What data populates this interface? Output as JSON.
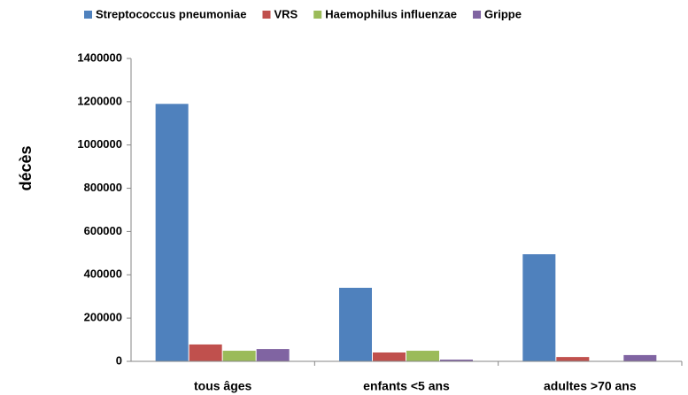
{
  "chart_data": {
    "type": "bar",
    "categories": [
      "tous âges",
      "enfants <5 ans",
      "adultes >70 ans"
    ],
    "series": [
      {
        "name": "Streptococcus pneumoniae",
        "color": "#4f81bd",
        "values": [
          1190000,
          340000,
          495000
        ]
      },
      {
        "name": "VRS",
        "color": "#c0504d",
        "values": [
          78000,
          41000,
          20000
        ]
      },
      {
        "name": "Haemophilus influenzae",
        "color": "#9bbb59",
        "values": [
          49000,
          49000,
          0
        ]
      },
      {
        "name": "Grippe",
        "color": "#8064a2",
        "values": [
          57000,
          8000,
          29000
        ]
      }
    ],
    "ylabel": "décès",
    "ylim": [
      0,
      1400000
    ],
    "yticks": [
      0,
      200000,
      400000,
      600000,
      800000,
      1000000,
      1200000,
      1400000
    ],
    "grid": false,
    "legend": "top"
  }
}
